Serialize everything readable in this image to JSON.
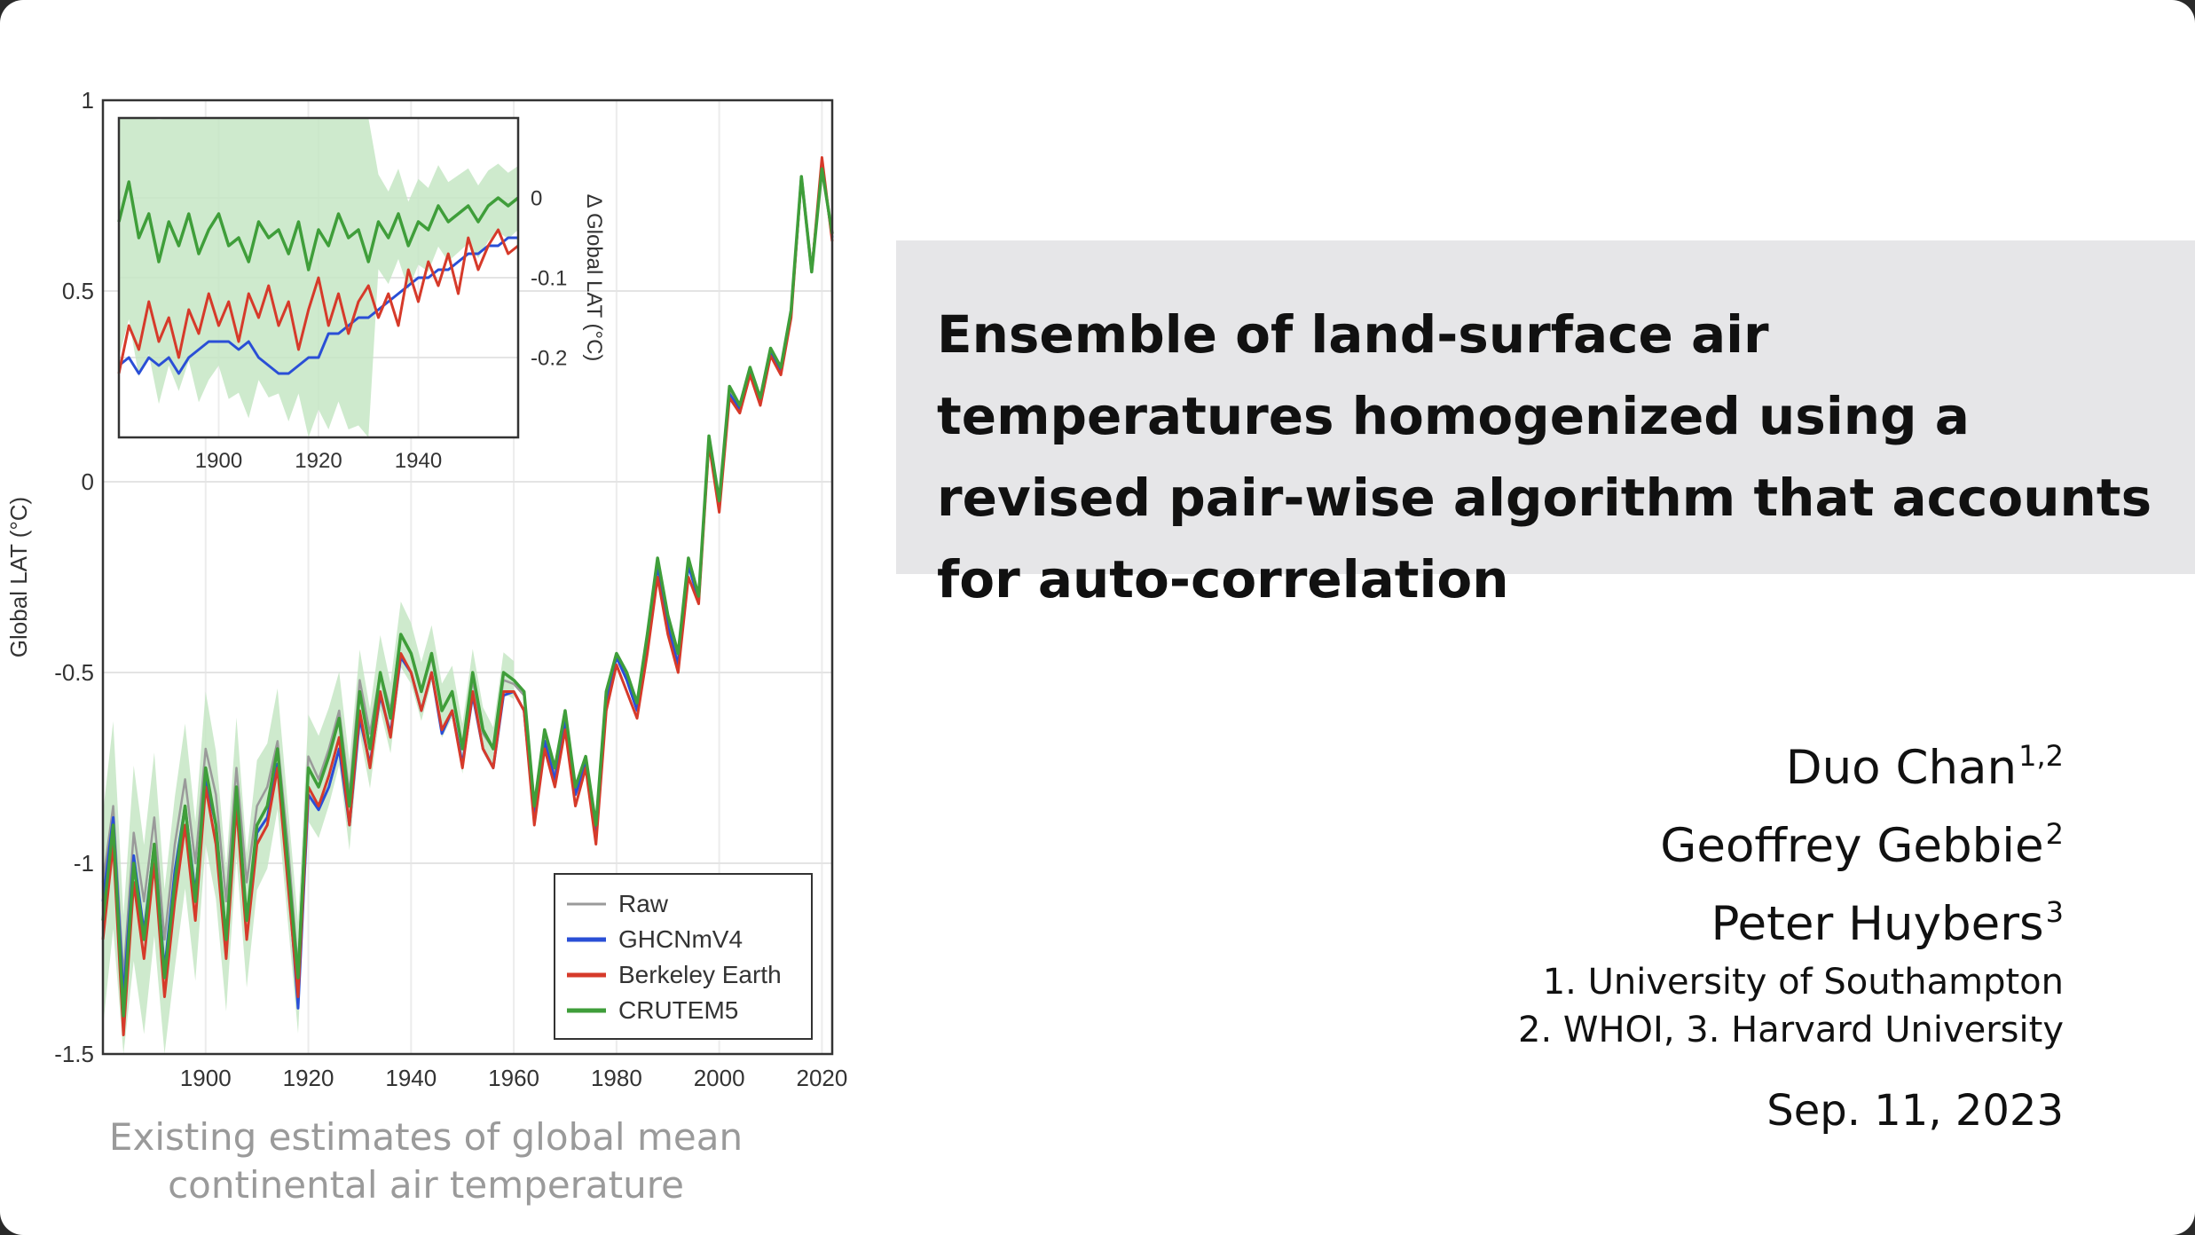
{
  "slide": {
    "title": "Ensemble of land-surface air temperatures homogenized using a revised pair-wise algorithm that accounts for auto-correlation",
    "authors": [
      {
        "name": "Duo Chan",
        "sup": "1,2"
      },
      {
        "name": "Geoffrey Gebbie",
        "sup": "2"
      },
      {
        "name": "Peter Huybers",
        "sup": "3"
      }
    ],
    "affiliations": [
      "1. University of Southampton",
      "2. WHOI, 3. Harvard University"
    ],
    "date": "Sep. 11, 2023",
    "caption": "Existing estimates of global mean continental air temperature"
  },
  "chart_data": [
    {
      "type": "line",
      "ylabel": "Global LAT (°C)",
      "xlim": [
        1880,
        2022
      ],
      "ylim": [
        -1.5,
        1
      ],
      "xticks": [
        1900,
        1920,
        1940,
        1960,
        1980,
        2000,
        2020
      ],
      "yticks": [
        -1.5,
        -1,
        -0.5,
        0,
        0.5,
        1
      ],
      "ytick_labels": [
        "-1.5",
        "-1",
        "-0.5",
        "0",
        "0.5",
        "1"
      ],
      "grid": true,
      "legend": {
        "position": "bottom-right",
        "entries": [
          "Raw",
          "GHCNmV4",
          "Berkeley Earth",
          "CRUTEM5"
        ]
      },
      "colors": {
        "Raw": "#9a9a9a",
        "GHCNmV4": "#2a4fd6",
        "Berkeley Earth": "#d63a2a",
        "CRUTEM5": "#3f9e3a",
        "band": "#c6e6c4"
      },
      "uncertainty_band": {
        "series": "CRUTEM5",
        "x": [
          1880,
          1900,
          1920,
          1940,
          1960
        ],
        "half_width": [
          0.28,
          0.2,
          0.14,
          0.08,
          0.05
        ]
      },
      "x": [
        1880,
        1882,
        1884,
        1886,
        1888,
        1890,
        1892,
        1894,
        1896,
        1898,
        1900,
        1902,
        1904,
        1906,
        1908,
        1910,
        1912,
        1914,
        1916,
        1918,
        1920,
        1922,
        1924,
        1926,
        1928,
        1930,
        1932,
        1934,
        1936,
        1938,
        1940,
        1942,
        1944,
        1946,
        1948,
        1950,
        1952,
        1954,
        1956,
        1958,
        1960,
        1962,
        1964,
        1966,
        1968,
        1970,
        1972,
        1974,
        1976,
        1978,
        1980,
        1982,
        1984,
        1986,
        1988,
        1990,
        1992,
        1994,
        1996,
        1998,
        2000,
        2002,
        2004,
        2006,
        2008,
        2010,
        2012,
        2014,
        2016,
        2018,
        2020,
        2022
      ],
      "series": [
        {
          "name": "CRUTEM5",
          "values": [
            -1.15,
            -0.9,
            -1.4,
            -1.0,
            -1.2,
            -0.95,
            -1.3,
            -1.05,
            -0.85,
            -1.1,
            -0.75,
            -0.9,
            -1.2,
            -0.8,
            -1.15,
            -0.9,
            -0.85,
            -0.7,
            -1.0,
            -1.3,
            -0.75,
            -0.8,
            -0.72,
            -0.62,
            -0.85,
            -0.55,
            -0.7,
            -0.5,
            -0.62,
            -0.4,
            -0.45,
            -0.55,
            -0.45,
            -0.6,
            -0.55,
            -0.7,
            -0.5,
            -0.65,
            -0.7,
            -0.5,
            -0.52,
            -0.55,
            -0.85,
            -0.65,
            -0.75,
            -0.6,
            -0.8,
            -0.72,
            -0.9,
            -0.55,
            -0.45,
            -0.5,
            -0.58,
            -0.4,
            -0.2,
            -0.35,
            -0.45,
            -0.2,
            -0.3,
            0.12,
            -0.05,
            0.25,
            0.2,
            0.3,
            0.22,
            0.35,
            0.3,
            0.45,
            0.8,
            0.55,
            0.82,
            0.65
          ]
        },
        {
          "name": "Berkeley Earth",
          "values": [
            -1.2,
            -0.95,
            -1.45,
            -1.05,
            -1.25,
            -1.0,
            -1.35,
            -1.1,
            -0.9,
            -1.15,
            -0.8,
            -0.95,
            -1.25,
            -0.85,
            -1.2,
            -0.95,
            -0.9,
            -0.75,
            -1.05,
            -1.35,
            -0.8,
            -0.85,
            -0.77,
            -0.67,
            -0.9,
            -0.6,
            -0.75,
            -0.55,
            -0.67,
            -0.45,
            -0.5,
            -0.6,
            -0.5,
            -0.65,
            -0.6,
            -0.75,
            -0.55,
            -0.7,
            -0.75,
            -0.55,
            -0.55,
            -0.6,
            -0.9,
            -0.7,
            -0.8,
            -0.65,
            -0.85,
            -0.75,
            -0.95,
            -0.6,
            -0.48,
            -0.55,
            -0.62,
            -0.45,
            -0.25,
            -0.4,
            -0.5,
            -0.25,
            -0.32,
            0.1,
            -0.08,
            0.22,
            0.18,
            0.28,
            0.2,
            0.33,
            0.28,
            0.43,
            0.8,
            0.55,
            0.85,
            0.63
          ]
        },
        {
          "name": "GHCNmV4",
          "values": [
            -1.1,
            -0.88,
            -1.35,
            -0.98,
            -1.18,
            -0.95,
            -1.28,
            -1.02,
            -0.85,
            -1.08,
            -0.78,
            -0.9,
            -1.2,
            -0.82,
            -1.15,
            -0.92,
            -0.88,
            -0.74,
            -1.02,
            -1.38,
            -0.82,
            -0.86,
            -0.8,
            -0.7,
            -0.9,
            -0.62,
            -0.74,
            -0.56,
            -0.66,
            -0.46,
            -0.5,
            -0.6,
            -0.5,
            -0.66,
            -0.6,
            -0.74,
            -0.56,
            -0.7,
            -0.75,
            -0.56,
            -0.55,
            -0.6,
            -0.88,
            -0.68,
            -0.78,
            -0.63,
            -0.82,
            -0.74,
            -0.92,
            -0.58,
            -0.46,
            -0.52,
            -0.6,
            -0.43,
            -0.22,
            -0.38,
            -0.48,
            -0.22,
            -0.31,
            0.11,
            -0.06,
            0.23,
            0.19,
            0.29,
            0.21,
            0.34,
            0.29,
            0.44,
            0.8,
            0.55,
            0.83,
            0.64
          ]
        },
        {
          "name": "Raw",
          "values": [
            -1.05,
            -0.85,
            -1.3,
            -0.92,
            -1.1,
            -0.88,
            -1.2,
            -0.95,
            -0.78,
            -1.0,
            -0.7,
            -0.82,
            -1.1,
            -0.75,
            -1.05,
            -0.85,
            -0.8,
            -0.68,
            -0.95,
            -1.28,
            -0.72,
            -0.78,
            -0.7,
            -0.6,
            -0.82,
            -0.52,
            -0.66,
            -0.5,
            -0.6,
            -0.4,
            -0.45,
            -0.55,
            -0.46,
            -0.6,
            -0.55,
            -0.7,
            -0.52,
            -0.66,
            -0.7,
            -0.52,
            -0.53,
            -0.56,
            -0.86,
            -0.66,
            -0.76,
            -0.61,
            -0.81,
            -0.73,
            -0.91,
            -0.56,
            -0.45,
            -0.51,
            -0.59,
            -0.42,
            -0.21,
            -0.36,
            -0.46,
            -0.21,
            -0.3,
            0.11,
            -0.05,
            0.24,
            0.2,
            0.3,
            0.22,
            0.35,
            0.3,
            0.45,
            0.8,
            0.56,
            0.83,
            0.65
          ]
        }
      ]
    },
    {
      "type": "line",
      "ylabel": "Δ Global LAT (°C)",
      "xlim": [
        1880,
        1960
      ],
      "ylim": [
        -0.3,
        0.1
      ],
      "xticks": [
        1900,
        1920,
        1940
      ],
      "yticks": [
        0,
        -0.1,
        -0.2
      ],
      "ytick_labels": [
        "0",
        "-0.1",
        "-0.2"
      ],
      "grid": true,
      "colors": {
        "GHCNmV4": "#2a4fd6",
        "Berkeley Earth": "#d63a2a",
        "CRUTEM5": "#3f9e3a",
        "band": "#c6e6c4"
      },
      "uncertainty_band": {
        "series": "CRUTEM5",
        "x": [
          1880,
          1910,
          1930,
          1931,
          1960
        ],
        "half_width": [
          0.17,
          0.2,
          0.25,
          0.06,
          0.04
        ]
      },
      "x": [
        1880,
        1882,
        1884,
        1886,
        1888,
        1890,
        1892,
        1894,
        1896,
        1898,
        1900,
        1902,
        1904,
        1906,
        1908,
        1910,
        1912,
        1914,
        1916,
        1918,
        1920,
        1922,
        1924,
        1926,
        1928,
        1930,
        1932,
        1934,
        1936,
        1938,
        1940,
        1942,
        1944,
        1946,
        1948,
        1950,
        1952,
        1954,
        1956,
        1958,
        1960
      ],
      "series": [
        {
          "name": "CRUTEM5",
          "values": [
            -0.03,
            0.02,
            -0.05,
            -0.02,
            -0.08,
            -0.03,
            -0.06,
            -0.02,
            -0.07,
            -0.04,
            -0.02,
            -0.06,
            -0.05,
            -0.08,
            -0.03,
            -0.05,
            -0.04,
            -0.07,
            -0.03,
            -0.09,
            -0.04,
            -0.06,
            -0.02,
            -0.05,
            -0.04,
            -0.08,
            -0.03,
            -0.05,
            -0.02,
            -0.06,
            -0.03,
            -0.04,
            -0.01,
            -0.03,
            -0.02,
            -0.01,
            -0.03,
            -0.01,
            0.0,
            -0.01,
            0.0
          ]
        },
        {
          "name": "Berkeley Earth",
          "values": [
            -0.22,
            -0.16,
            -0.19,
            -0.13,
            -0.18,
            -0.15,
            -0.2,
            -0.14,
            -0.17,
            -0.12,
            -0.16,
            -0.13,
            -0.18,
            -0.12,
            -0.15,
            -0.11,
            -0.16,
            -0.13,
            -0.19,
            -0.14,
            -0.1,
            -0.16,
            -0.12,
            -0.17,
            -0.13,
            -0.11,
            -0.15,
            -0.12,
            -0.16,
            -0.09,
            -0.13,
            -0.08,
            -0.11,
            -0.07,
            -0.12,
            -0.05,
            -0.09,
            -0.06,
            -0.04,
            -0.07,
            -0.06
          ]
        },
        {
          "name": "GHCNmV4",
          "values": [
            -0.21,
            -0.2,
            -0.22,
            -0.2,
            -0.21,
            -0.2,
            -0.22,
            -0.2,
            -0.19,
            -0.18,
            -0.18,
            -0.18,
            -0.19,
            -0.18,
            -0.2,
            -0.21,
            -0.22,
            -0.22,
            -0.21,
            -0.2,
            -0.2,
            -0.17,
            -0.17,
            -0.16,
            -0.15,
            -0.15,
            -0.14,
            -0.13,
            -0.12,
            -0.11,
            -0.1,
            -0.1,
            -0.09,
            -0.09,
            -0.08,
            -0.07,
            -0.07,
            -0.06,
            -0.06,
            -0.05,
            -0.05
          ]
        }
      ]
    }
  ]
}
